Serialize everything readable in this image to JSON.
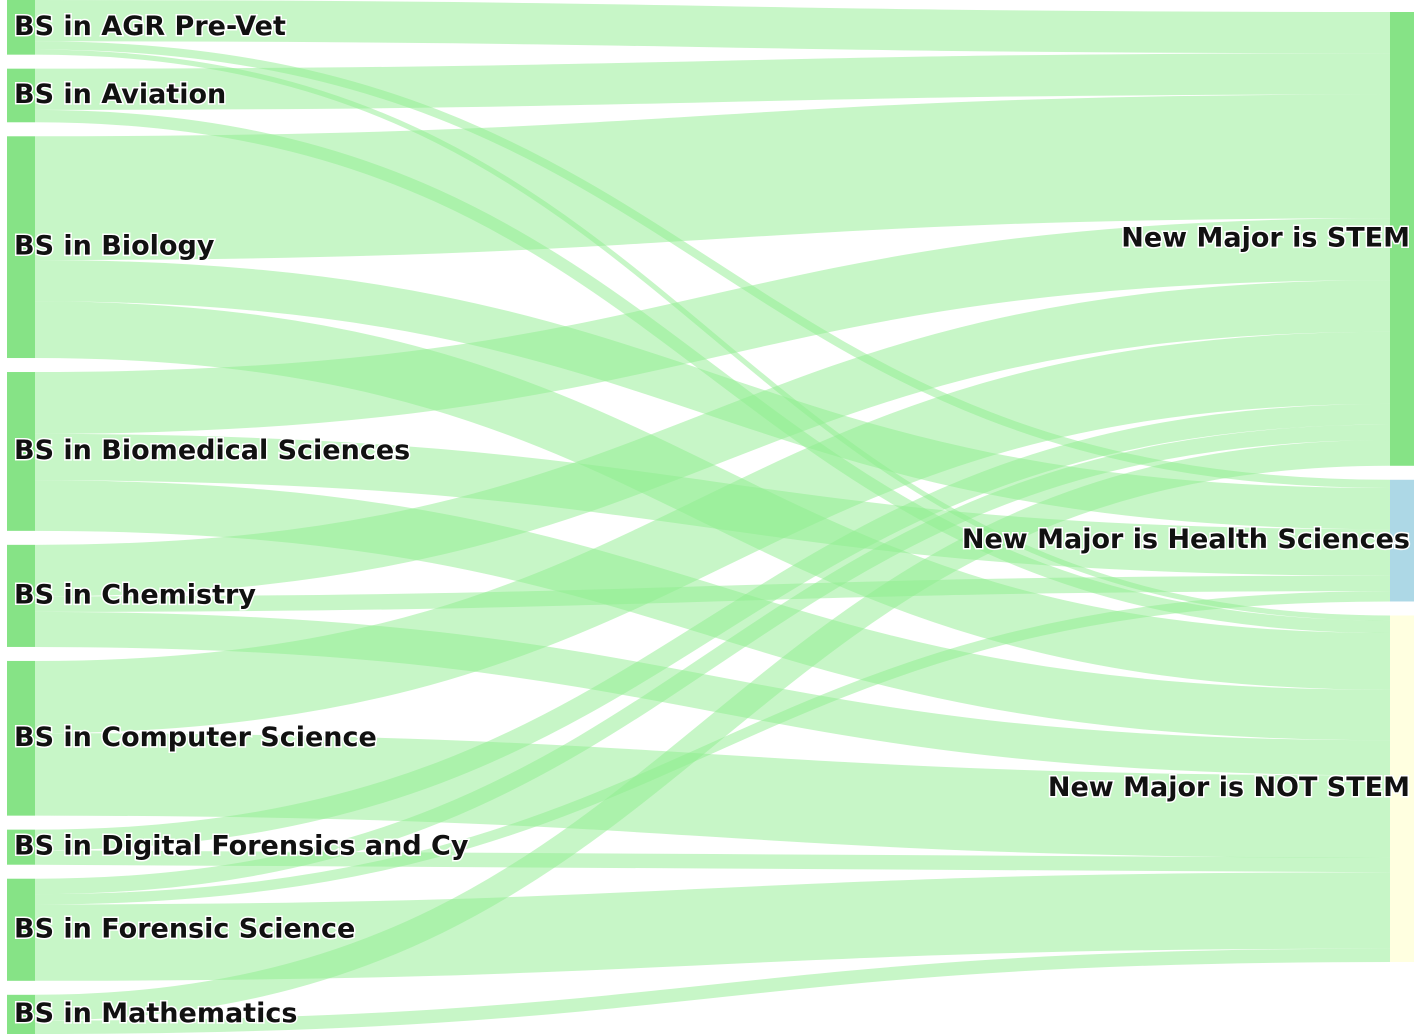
{
  "chart_data": {
    "type": "sankey",
    "nodes": [
      {
        "name": "BS in AGR Pre-Vet",
        "color": "#86e386"
      },
      {
        "name": "BS in Aviation",
        "color": "#86e386"
      },
      {
        "name": "BS in Biology",
        "color": "#86e386"
      },
      {
        "name": "BS in Biomedical Sciences",
        "color": "#86e386"
      },
      {
        "name": "BS in Chemistry",
        "color": "#86e386"
      },
      {
        "name": "BS in Computer Science",
        "color": "#86e386"
      },
      {
        "name": "BS in Digital Forensics and Cy",
        "color": "#86e386"
      },
      {
        "name": "BS in Forensic Science",
        "color": "#86e386"
      },
      {
        "name": "BS in Mathematics",
        "color": "#86e386"
      },
      {
        "name": "New Major is STEM",
        "color": "#86e386"
      },
      {
        "name": "New Major is Health Sciences",
        "color": "#add8e6"
      },
      {
        "name": "New Major is NOT STEM",
        "color": "#ffffe0"
      }
    ],
    "link_color": "#90ee90",
    "links": [
      {
        "source": 0,
        "target": 9,
        "value": 40
      },
      {
        "source": 0,
        "target": 10,
        "value": 8
      },
      {
        "source": 0,
        "target": 11,
        "value": 5
      },
      {
        "source": 1,
        "target": 9,
        "value": 40
      },
      {
        "source": 1,
        "target": 11,
        "value": 12
      },
      {
        "source": 2,
        "target": 9,
        "value": 120
      },
      {
        "source": 2,
        "target": 10,
        "value": 40
      },
      {
        "source": 2,
        "target": 11,
        "value": 55
      },
      {
        "source": 3,
        "target": 9,
        "value": 60
      },
      {
        "source": 3,
        "target": 10,
        "value": 45
      },
      {
        "source": 3,
        "target": 11,
        "value": 49
      },
      {
        "source": 4,
        "target": 9,
        "value": 50
      },
      {
        "source": 4,
        "target": 10,
        "value": 15
      },
      {
        "source": 4,
        "target": 11,
        "value": 34
      },
      {
        "source": 5,
        "target": 9,
        "value": 70
      },
      {
        "source": 5,
        "target": 11,
        "value": 80
      },
      {
        "source": 6,
        "target": 9,
        "value": 20
      },
      {
        "source": 6,
        "target": 11,
        "value": 14
      },
      {
        "source": 7,
        "target": 9,
        "value": 15
      },
      {
        "source": 7,
        "target": 10,
        "value": 10
      },
      {
        "source": 7,
        "target": 11,
        "value": 74
      },
      {
        "source": 8,
        "target": 9,
        "value": 25
      },
      {
        "source": 8,
        "target": 11,
        "value": 13
      }
    ]
  }
}
